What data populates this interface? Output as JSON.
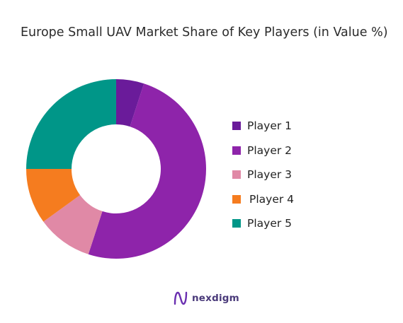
{
  "chart_data": {
    "type": "pie",
    "variant": "donut",
    "title": "Europe Small UAV Market Share of Key Players (in Value %)",
    "categories": [
      "Player 1",
      "Player 2",
      "Player 3",
      "Player 4",
      "Player 5"
    ],
    "values": [
      5,
      50,
      10,
      10,
      25
    ],
    "unit": "%",
    "colors": [
      "#6a1b9a",
      "#8e24aa",
      "#e089a6",
      "#f57c1f",
      "#009688"
    ],
    "legend_position": "right",
    "start_angle": "top, clockwise"
  },
  "brand": {
    "name": "nexdigm",
    "icon": "nexdigm-logo-icon"
  }
}
